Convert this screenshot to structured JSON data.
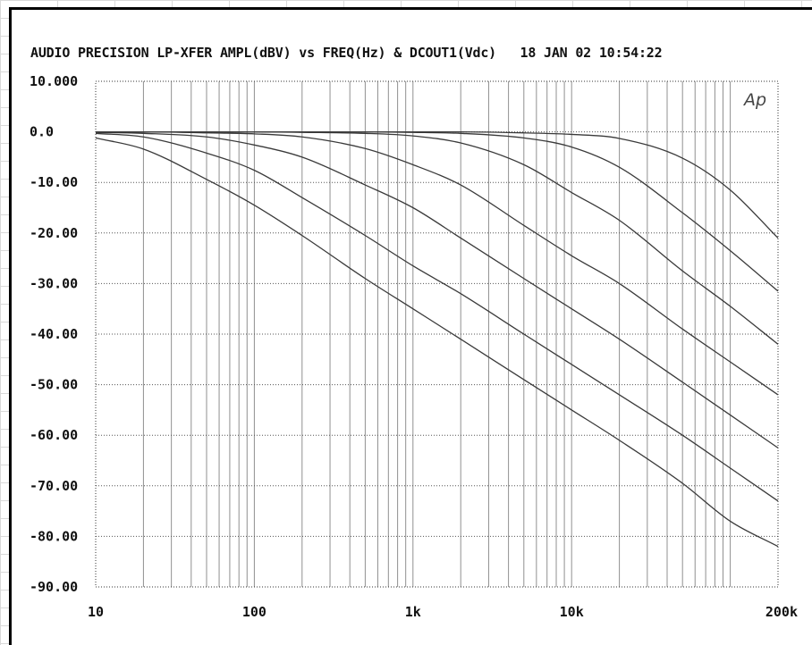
{
  "header": {
    "title": "AUDIO PRECISION LP-XFER AMPL(dBV) vs FREQ(Hz) & DCOUT1(Vdc)",
    "datetime": "18 JAN 02 10:54:22"
  },
  "logo_text": "Ap",
  "chart_data": {
    "type": "line",
    "title": "AUDIO PRECISION LP-XFER AMPL(dBV) vs FREQ(Hz) & DCOUT1(Vdc)",
    "xlabel": "",
    "ylabel": "",
    "x_scale": "log",
    "xlim": [
      10,
      200000
    ],
    "ylim": [
      -90,
      10
    ],
    "grid": true,
    "x_tick_labels": [
      "10",
      "100",
      "1k",
      "10k",
      "200k"
    ],
    "x_tick_values": [
      10,
      100,
      1000,
      10000,
      200000
    ],
    "y_tick_labels": [
      "10.000",
      "0.0",
      "-10.00",
      "-20.00",
      "-30.00",
      "-40.00",
      "-50.00",
      "-60.00",
      "-70.00",
      "-80.00",
      "-90.00"
    ],
    "y_tick_values": [
      10,
      0,
      -10,
      -20,
      -30,
      -40,
      -50,
      -60,
      -70,
      -80,
      -90
    ],
    "line_color": "#3a3a3a",
    "x": [
      10,
      20,
      50,
      100,
      200,
      500,
      1000,
      2000,
      5000,
      10000,
      20000,
      50000,
      100000,
      200000
    ],
    "series": [
      {
        "values": [
          0,
          0,
          0,
          0,
          0,
          0,
          0,
          0,
          -0.2,
          -0.5,
          -1.3,
          -5.2,
          -11.5,
          -21
        ]
      },
      {
        "values": [
          0,
          0,
          0,
          0,
          0,
          0,
          -0.1,
          -0.3,
          -1.2,
          -3,
          -7,
          -16,
          -23.5,
          -31.5
        ]
      },
      {
        "values": [
          0,
          0,
          0,
          0,
          -0.1,
          -0.3,
          -0.8,
          -2.2,
          -6.5,
          -12,
          -17.5,
          -27.5,
          -34.5,
          -42
        ]
      },
      {
        "values": [
          0,
          0,
          -0.2,
          -0.4,
          -1,
          -3.3,
          -6.5,
          -10.5,
          -18.5,
          -24.5,
          -30,
          -39,
          -45.5,
          -52
        ]
      },
      {
        "values": [
          -0.1,
          -0.3,
          -1,
          -2.6,
          -5,
          -10.5,
          -15,
          -21,
          -29,
          -35,
          -41,
          -49.5,
          -56,
          -62.5
        ]
      },
      {
        "values": [
          -0.3,
          -1,
          -4.2,
          -7.6,
          -13,
          -20.5,
          -26.5,
          -32,
          -40,
          -46,
          -52,
          -60,
          -66.5,
          -73
        ]
      },
      {
        "values": [
          -1.2,
          -3.4,
          -9.4,
          -14.5,
          -20.5,
          -29,
          -35,
          -41,
          -49,
          -55,
          -61,
          -69.5,
          -77,
          -82
        ]
      }
    ]
  }
}
